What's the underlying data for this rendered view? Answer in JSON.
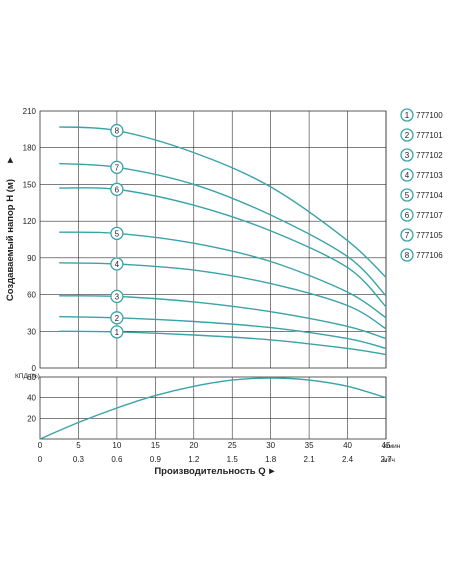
{
  "chart_data": [
    {
      "type": "line",
      "ylabel": "Создаваемый напор H (м)",
      "ylim": [
        0,
        210
      ],
      "xlim": [
        0,
        45
      ],
      "yticks": [
        "0",
        "30",
        "60",
        "90",
        "120",
        "150",
        "180",
        "210"
      ],
      "grid": true,
      "legend_position": "right",
      "line_color": "#3aa3a8",
      "series": [
        {
          "name": "777100",
          "marker": "1",
          "x": [
            2.5,
            10,
            20,
            30,
            40,
            45
          ],
          "values": [
            30,
            29.5,
            27,
            23,
            16,
            11
          ]
        },
        {
          "name": "777101",
          "marker": "2",
          "x": [
            2.5,
            10,
            20,
            30,
            40,
            45
          ],
          "values": [
            42,
            41,
            38,
            33,
            24,
            16
          ]
        },
        {
          "name": "777102",
          "marker": "3",
          "x": [
            2.5,
            10,
            20,
            30,
            40,
            45
          ],
          "values": [
            59,
            58.5,
            54,
            46,
            34,
            24
          ]
        },
        {
          "name": "777103",
          "marker": "4",
          "x": [
            2.5,
            10,
            20,
            30,
            40,
            45
          ],
          "values": [
            86,
            85,
            80,
            69,
            51,
            32
          ]
        },
        {
          "name": "777104",
          "marker": "5",
          "x": [
            2.5,
            10,
            20,
            30,
            40,
            45
          ],
          "values": [
            111,
            110,
            102,
            87,
            62,
            41
          ]
        },
        {
          "name": "777107",
          "marker": "6",
          "x": [
            2.5,
            10,
            20,
            30,
            40,
            45
          ],
          "values": [
            147,
            146,
            133,
            112,
            82,
            50
          ]
        },
        {
          "name": "777105",
          "marker": "7",
          "x": [
            2.5,
            10,
            20,
            30,
            40,
            45
          ],
          "values": [
            167,
            164,
            150,
            125,
            91,
            59
          ]
        },
        {
          "name": "777106",
          "marker": "8",
          "x": [
            2.5,
            10,
            20,
            30,
            40,
            45
          ],
          "values": [
            197,
            194,
            176,
            148,
            104,
            74
          ]
        }
      ]
    },
    {
      "type": "line",
      "ylabel": "КПД (%)",
      "ylim": [
        0,
        60
      ],
      "xlim": [
        0,
        45
      ],
      "yticks": [
        "0",
        "20",
        "40",
        "60"
      ],
      "grid": true,
      "series": [
        {
          "x": [
            0,
            5,
            10,
            15,
            20,
            25,
            30,
            35,
            40,
            45
          ],
          "values": [
            0,
            16,
            30,
            42,
            51,
            57,
            59,
            57,
            51,
            40
          ]
        }
      ]
    }
  ],
  "x_axis": {
    "ticks_lpm": [
      "0",
      "5",
      "10",
      "15",
      "20",
      "25",
      "30",
      "35",
      "40",
      "45"
    ],
    "unit_lpm": "л/мин",
    "ticks_m3h": [
      "0",
      "0.3",
      "0.6",
      "0.9",
      "1.2",
      "1.5",
      "1.8",
      "2.1",
      "2.4",
      "2.7"
    ],
    "unit_m3h": "м³/ч",
    "xlabel": "Производительность Q",
    "arrow": "►"
  },
  "y_arrow": "►"
}
